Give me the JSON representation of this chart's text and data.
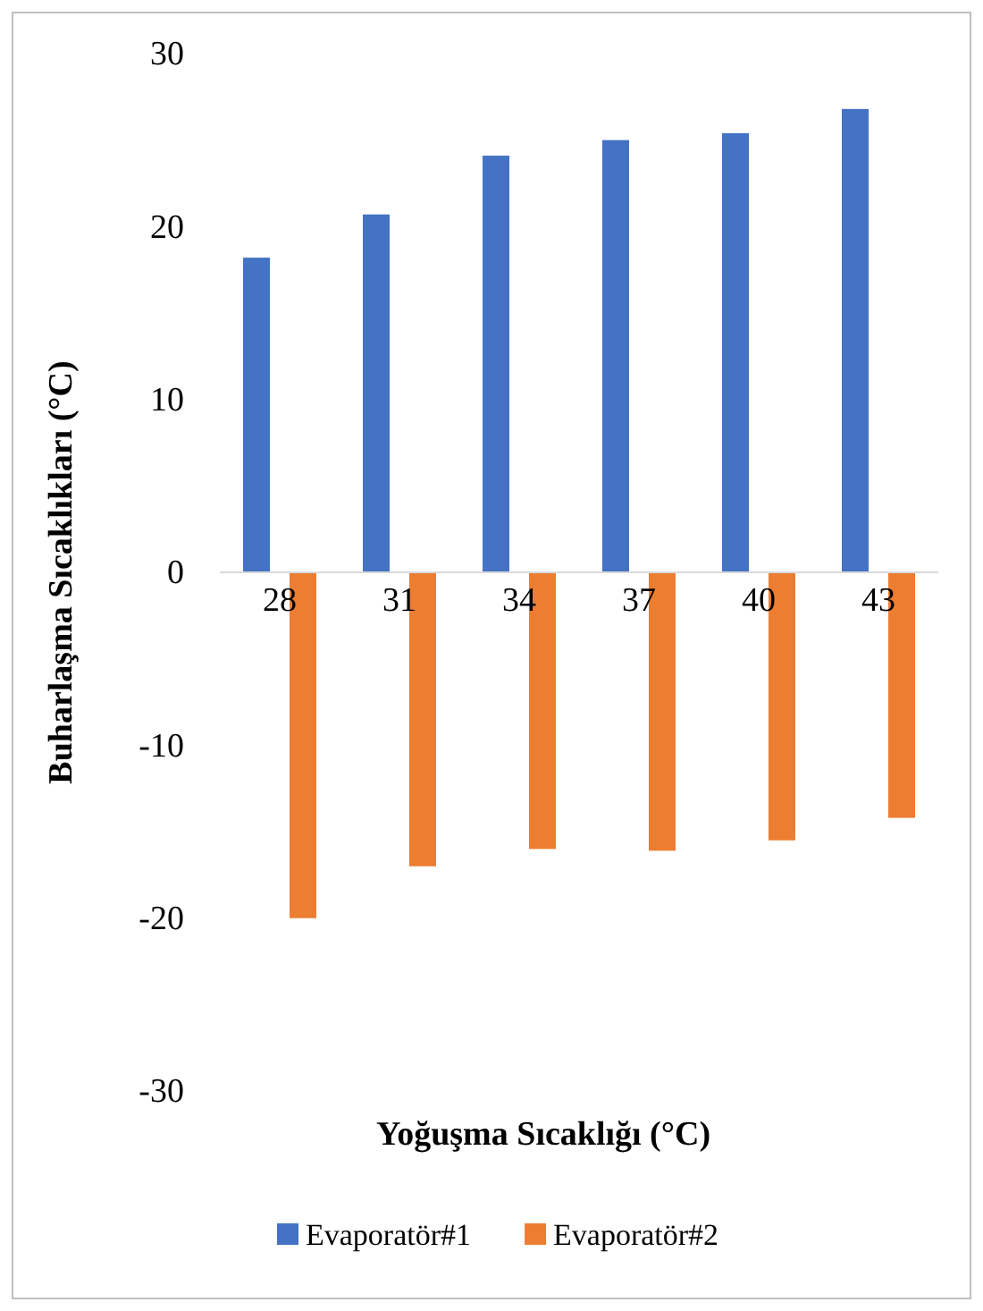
{
  "chart_data": {
    "type": "bar",
    "xlabel": "Yoğuşma Sıcaklığı (°C)",
    "ylabel": "Buharlaşma Sıcaklıkları (°C)",
    "categories": [
      "28",
      "31",
      "34",
      "37",
      "40",
      "43"
    ],
    "series": [
      {
        "name": "Evaporatör#1",
        "color": "#4472c4",
        "values": [
          18.2,
          20.7,
          24.1,
          25.0,
          25.4,
          26.8
        ]
      },
      {
        "name": "Evaporatör#2",
        "color": "#ed7d31",
        "values": [
          -20.0,
          -17.0,
          -16.0,
          -16.1,
          -15.5,
          -14.2
        ]
      }
    ],
    "ylim": [
      -30,
      30
    ],
    "yticks": [
      -30,
      -20,
      -10,
      0,
      10,
      20,
      30
    ],
    "grid": false,
    "legend": "bottom"
  }
}
